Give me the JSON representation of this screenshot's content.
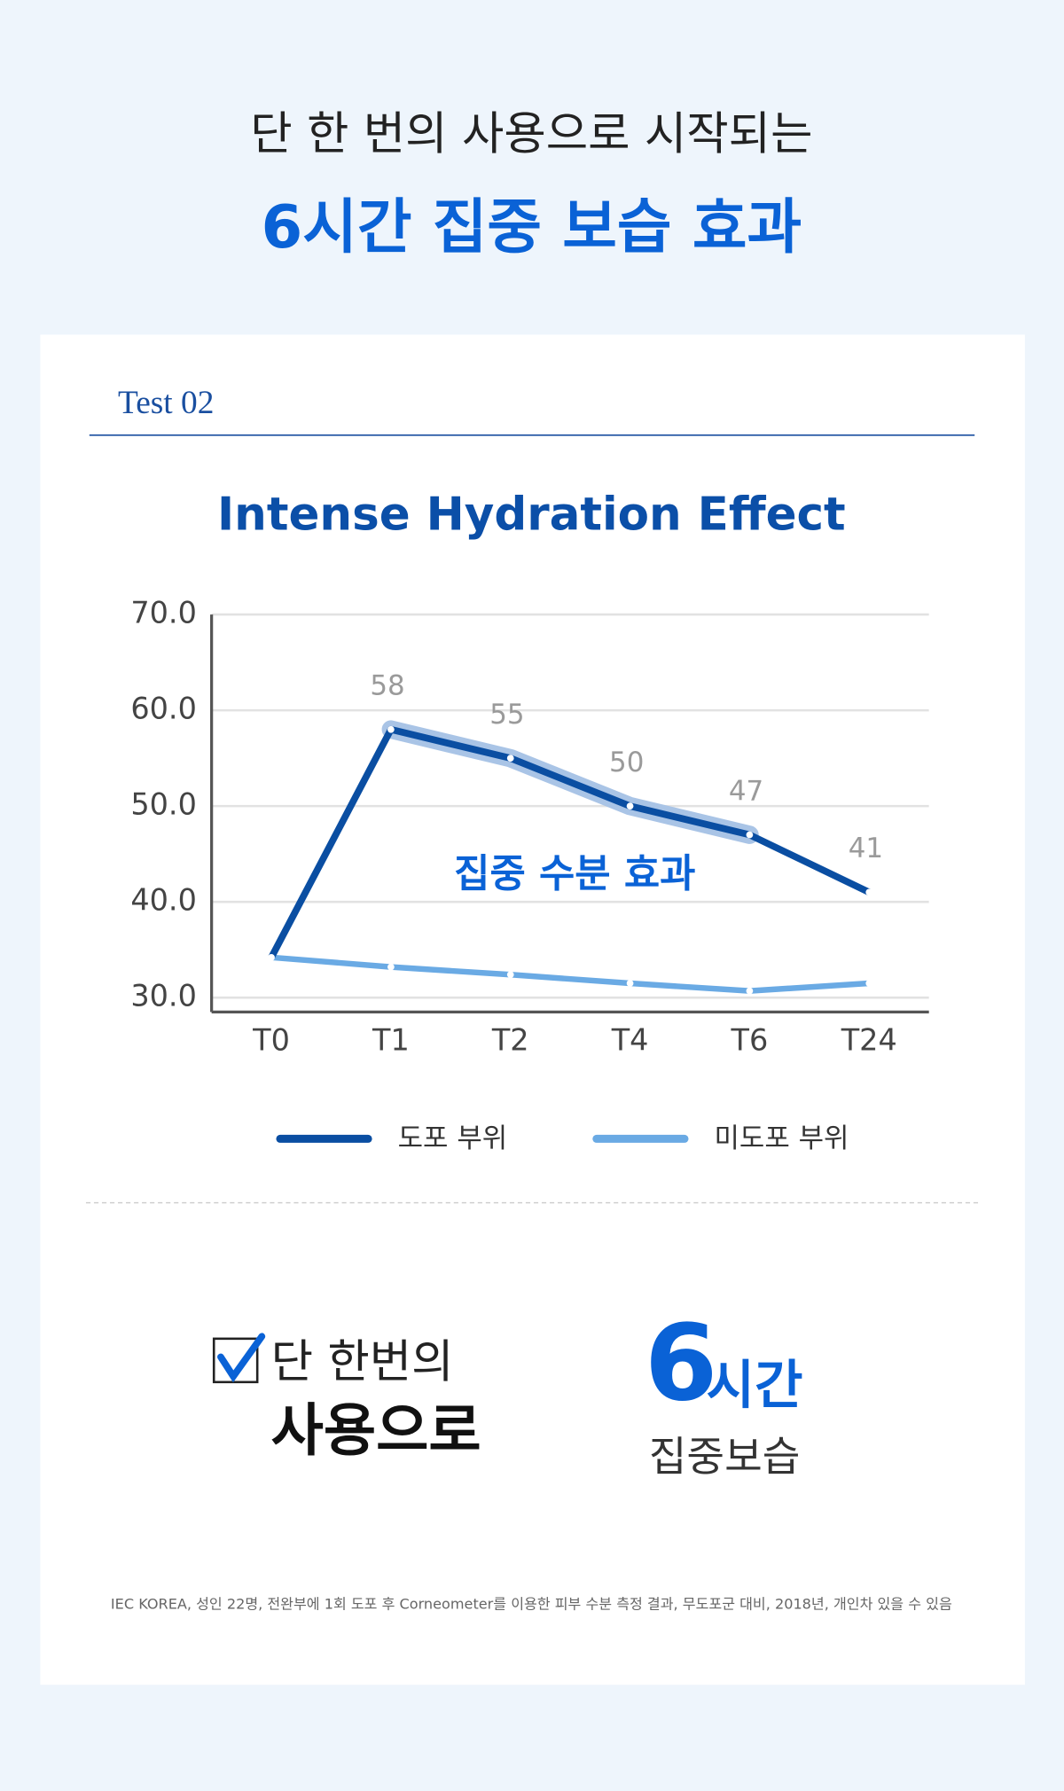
{
  "header": {
    "line1": "단 한 번의 사용으로 시작되는",
    "line2": "6시간 집중 보습 효과"
  },
  "test_label": "Test 02",
  "chart_data": {
    "type": "line",
    "title": "Intense Hydration Effect",
    "categories": [
      "T0",
      "T1",
      "T2",
      "T4",
      "T6",
      "T24"
    ],
    "series": [
      {
        "name": "도포 부위",
        "color": "#0a4ea2",
        "values": [
          34.2,
          58,
          55,
          50,
          47,
          41
        ],
        "value_labels": [
          null,
          "58",
          "55",
          "50",
          "47",
          "41"
        ]
      },
      {
        "name": "미도포 부위",
        "color": "#6aaae4",
        "values": [
          34.2,
          33.2,
          32.4,
          31.5,
          30.7,
          31.5
        ]
      }
    ],
    "ylim": [
      28.5,
      70
    ],
    "yticks": [
      {
        "value": 30,
        "label": "30.0"
      },
      {
        "value": 40,
        "label": "40.0"
      },
      {
        "value": 50,
        "label": "50.0"
      },
      {
        "value": 60,
        "label": "60.0"
      },
      {
        "value": 70,
        "label": "70.0"
      }
    ],
    "grid": true,
    "annotation": "집중 수분 효과"
  },
  "summary": {
    "left_line1": "단 한번의",
    "left_line2": "사용으로",
    "big_number": "6",
    "unit": "시간",
    "caption": "집중보습"
  },
  "footnote": "IEC KOREA, 성인 22명, 전완부에 1회 도포 후 Corneometer를 이용한 피부 수분 측정 결과, 무도포군 대비, 2018년, 개인차 있을 수 있음"
}
